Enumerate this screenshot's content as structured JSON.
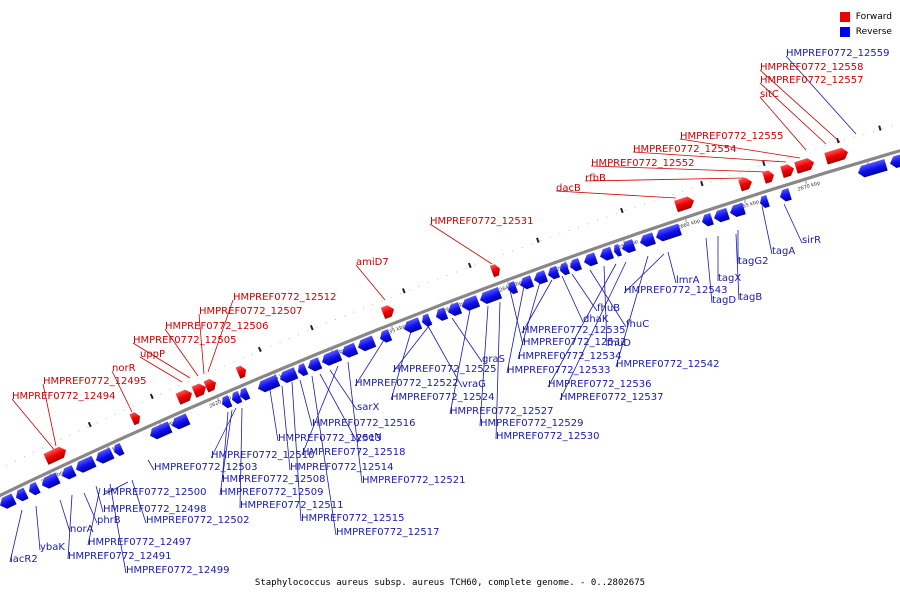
{
  "legend": {
    "forward_label": "Forward",
    "reverse_label": "Reverse",
    "forward_color": "#ee0000",
    "reverse_color": "#0000ee"
  },
  "caption": "Staphylococcus aureus subsp. aureus TCH60, complete genome. - 0..2802675",
  "colors": {
    "forward_text": "#cc0000",
    "reverse_text": "#1a1aaa",
    "backbone": "#888888"
  },
  "kbp_ticks": [
    "2605 kbp",
    "2610 kbp",
    "2615 kbp",
    "2620 kbp",
    "2625 kbp",
    "2630 kbp",
    "2635 kbp",
    "2640 kbp",
    "2645 kbp",
    "2650 kbp",
    "2655 kbp",
    "2660 kbp",
    "2665 kbp",
    "2670 kbp",
    "2675 kbp"
  ],
  "forward_labels": [
    "HMPREF0772_12494",
    "HMPREF0772_12495",
    "norR",
    "uppP",
    "HMPREF0772_12505",
    "HMPREF0772_12506",
    "HMPREF0772_12507",
    "HMPREF0772_12512",
    "amiD7",
    "HMPREF0772_12531",
    "dacB",
    "rfbB",
    "HMPREF0772_12552",
    "HMPREF0772_12554",
    "HMPREF0772_12555",
    "sitC",
    "HMPREF0772_12557",
    "HMPREF0772_12558"
  ],
  "reverse_labels": [
    "lacR2",
    "ybaK",
    "norA",
    "HMPREF0772_12491",
    "phrB",
    "HMPREF0772_12497",
    "HMPREF0772_12498",
    "HMPREF0772_12499",
    "HMPREF0772_12500",
    "HMPREF0772_12502",
    "HMPREF0772_12503",
    "HMPREF0772_12508",
    "HMPREF0772_12509",
    "HMPREF0772_12510",
    "HMPREF0772_12511",
    "HMPREF0772_12513",
    "HMPREF0772_12514",
    "HMPREF0772_12515",
    "HMPREF0772_12516",
    "HMPREF0772_12517",
    "yeeN",
    "sarX",
    "HMPREF0772_12518",
    "HMPREF0772_12521",
    "HMPREF0772_12522",
    "HMPREF0772_12524",
    "vraG",
    "HMPREF0772_12525",
    "graS",
    "HMPREF0772_12527",
    "HMPREF0772_12529",
    "HMPREF0772_12530",
    "HMPREF0772_12532",
    "HMPREF0772_12533",
    "HMPREF0772_12534",
    "HMPREF0772_12535",
    "dhaK",
    "fhuB",
    "fhuC",
    "fhuD",
    "HMPREF0772_12536",
    "HMPREF0772_12537",
    "HMPREF0772_12542",
    "HMPREF0772_12543",
    "lmrA",
    "tagD",
    "tagX",
    "tagB",
    "tagG2",
    "tagA",
    "sirR",
    "HMPREF0772_12559"
  ]
}
